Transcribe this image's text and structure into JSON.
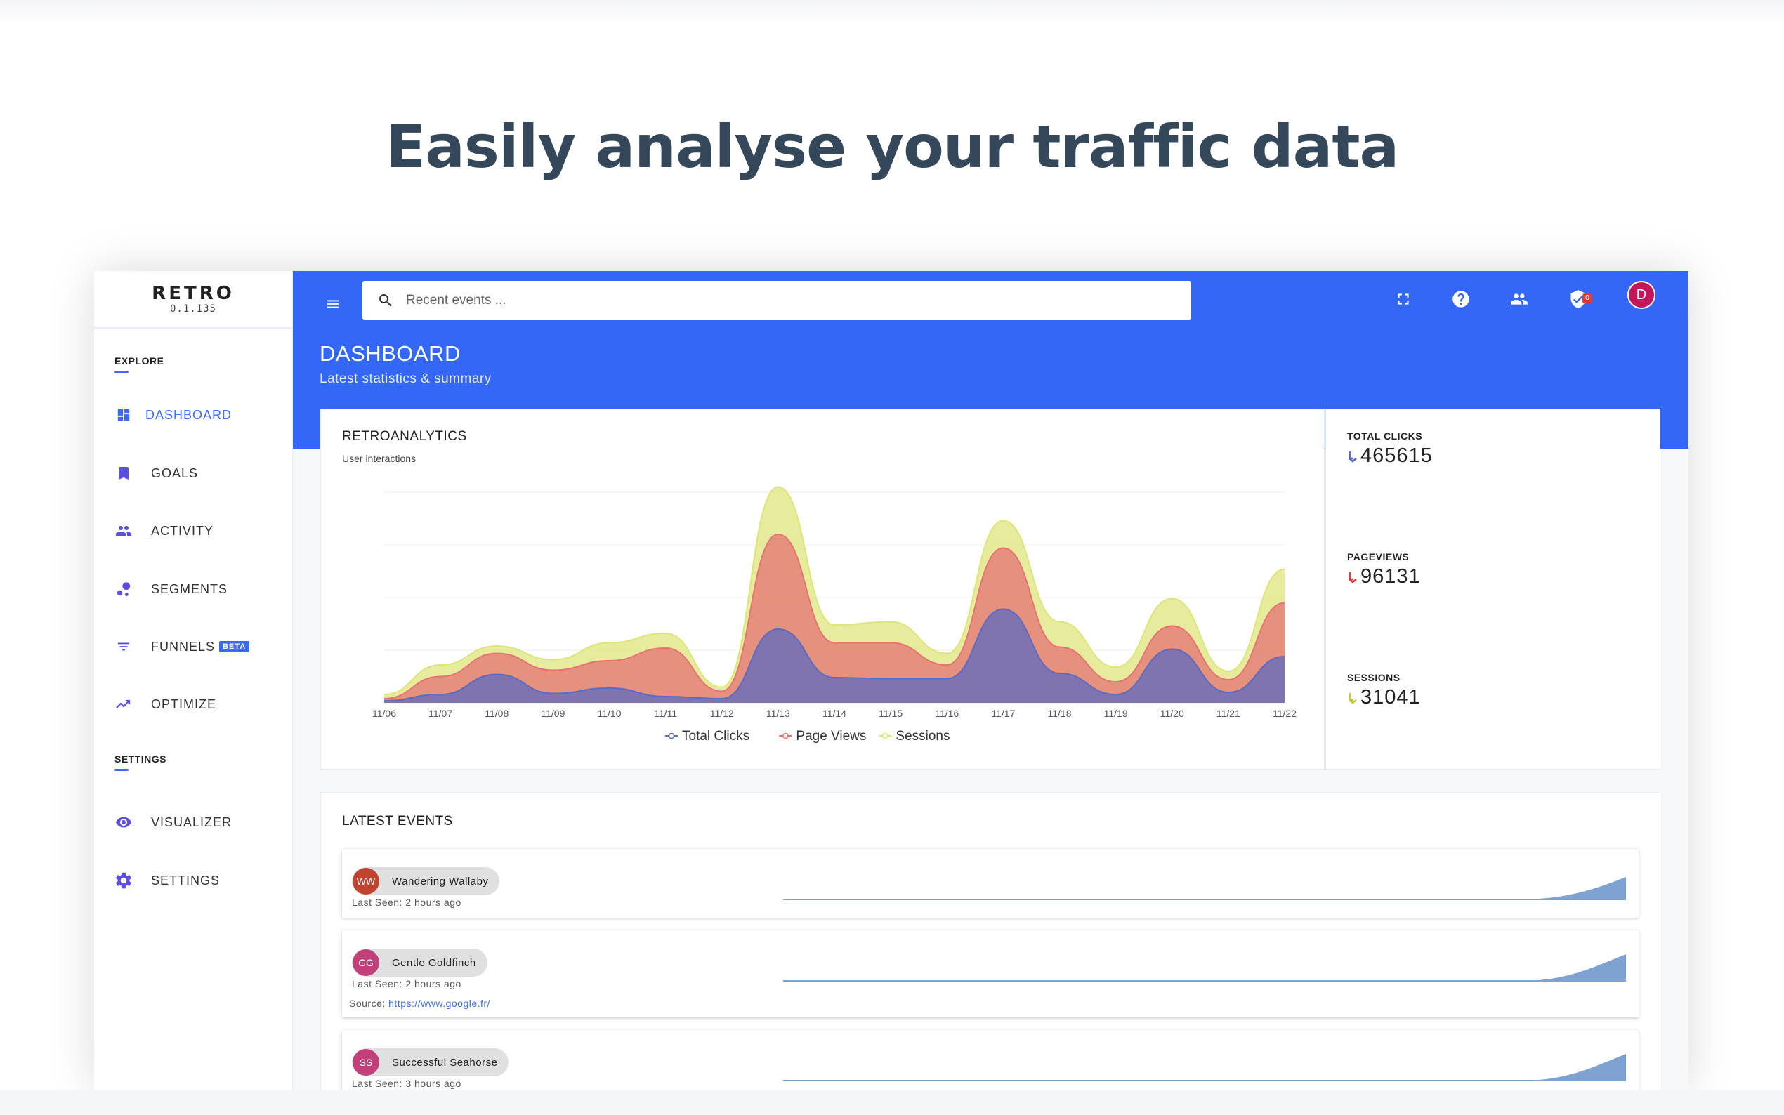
{
  "headline": "Easily analyse your traffic data",
  "app": {
    "name": "RETRO",
    "version": "0.1.135"
  },
  "sidebar": {
    "explore_title": "EXPLORE",
    "settings_title": "SETTINGS",
    "items": [
      {
        "label": "DASHBOARD",
        "icon": "dashboard-icon",
        "active": true
      },
      {
        "label": "GOALS",
        "icon": "bookmark-icon"
      },
      {
        "label": "ACTIVITY",
        "icon": "people-icon"
      },
      {
        "label": "SEGMENTS",
        "icon": "bubbles-icon"
      },
      {
        "label": "FUNNELS",
        "icon": "filter-icon",
        "badge": "BETA"
      },
      {
        "label": "OPTIMIZE",
        "icon": "trending-icon"
      },
      {
        "label": "VISUALIZER",
        "icon": "eye-icon"
      },
      {
        "label": "SETTINGS",
        "icon": "gear-icon"
      }
    ]
  },
  "topbar": {
    "search_placeholder": "Recent events ...",
    "notifications_count": "0",
    "user_initial": "D"
  },
  "page": {
    "title": "DASHBOARD",
    "subtitle": "Latest statistics & summary"
  },
  "analytics_card": {
    "title": "RETROANALYTICS",
    "subtitle": "User interactions"
  },
  "stats": [
    {
      "label": "TOTAL CLICKS",
      "value": "465615",
      "arrow_color": "#5c6bc0"
    },
    {
      "label": "PAGEVIEWS",
      "value": "96131",
      "arrow_color": "#e53935"
    },
    {
      "label": "SESSIONS",
      "value": "31041",
      "arrow_color": "#c0ca33"
    }
  ],
  "chart_data": {
    "type": "area",
    "stacked": true,
    "categories": [
      "11/06",
      "11/07",
      "11/08",
      "11/09",
      "11/10",
      "11/11",
      "11/12",
      "11/13",
      "11/14",
      "11/15",
      "11/16",
      "11/17",
      "11/18",
      "11/19",
      "11/20",
      "11/21",
      "11/22"
    ],
    "series": [
      {
        "name": "Total Clicks",
        "color": "#5c6bc0",
        "values": [
          2,
          8,
          27,
          9,
          14,
          6,
          4,
          70,
          24,
          23,
          23,
          89,
          28,
          8,
          51,
          10,
          44
        ]
      },
      {
        "name": "Page Views",
        "color": "#e57373",
        "values": [
          2,
          17,
          20,
          22,
          26,
          46,
          7,
          90,
          33,
          34,
          13,
          58,
          25,
          12,
          22,
          12,
          51
        ]
      },
      {
        "name": "Sessions",
        "color": "#dde57a",
        "values": [
          4,
          11,
          7,
          10,
          17,
          14,
          4,
          45,
          17,
          20,
          11,
          26,
          24,
          14,
          26,
          8,
          32
        ]
      }
    ],
    "ylim": [
      0,
      200
    ],
    "grid": true,
    "legend": "bottom"
  },
  "events_card": {
    "title": "LATEST EVENTS",
    "events": [
      {
        "initials": "WW",
        "name": "Wandering Wallaby",
        "last_seen": "Last Seen: 2 hours ago",
        "color": "#c0432f",
        "source": ""
      },
      {
        "initials": "GG",
        "name": "Gentle Goldfinch",
        "last_seen": "Last Seen: 2 hours ago",
        "color": "#c2407a",
        "source_label": "Source:",
        "source": "https://www.google.fr/"
      },
      {
        "initials": "SS",
        "name": "Successful Seahorse",
        "last_seen": "Last Seen: 3 hours ago",
        "color": "#c2407a",
        "source": ""
      }
    ]
  }
}
